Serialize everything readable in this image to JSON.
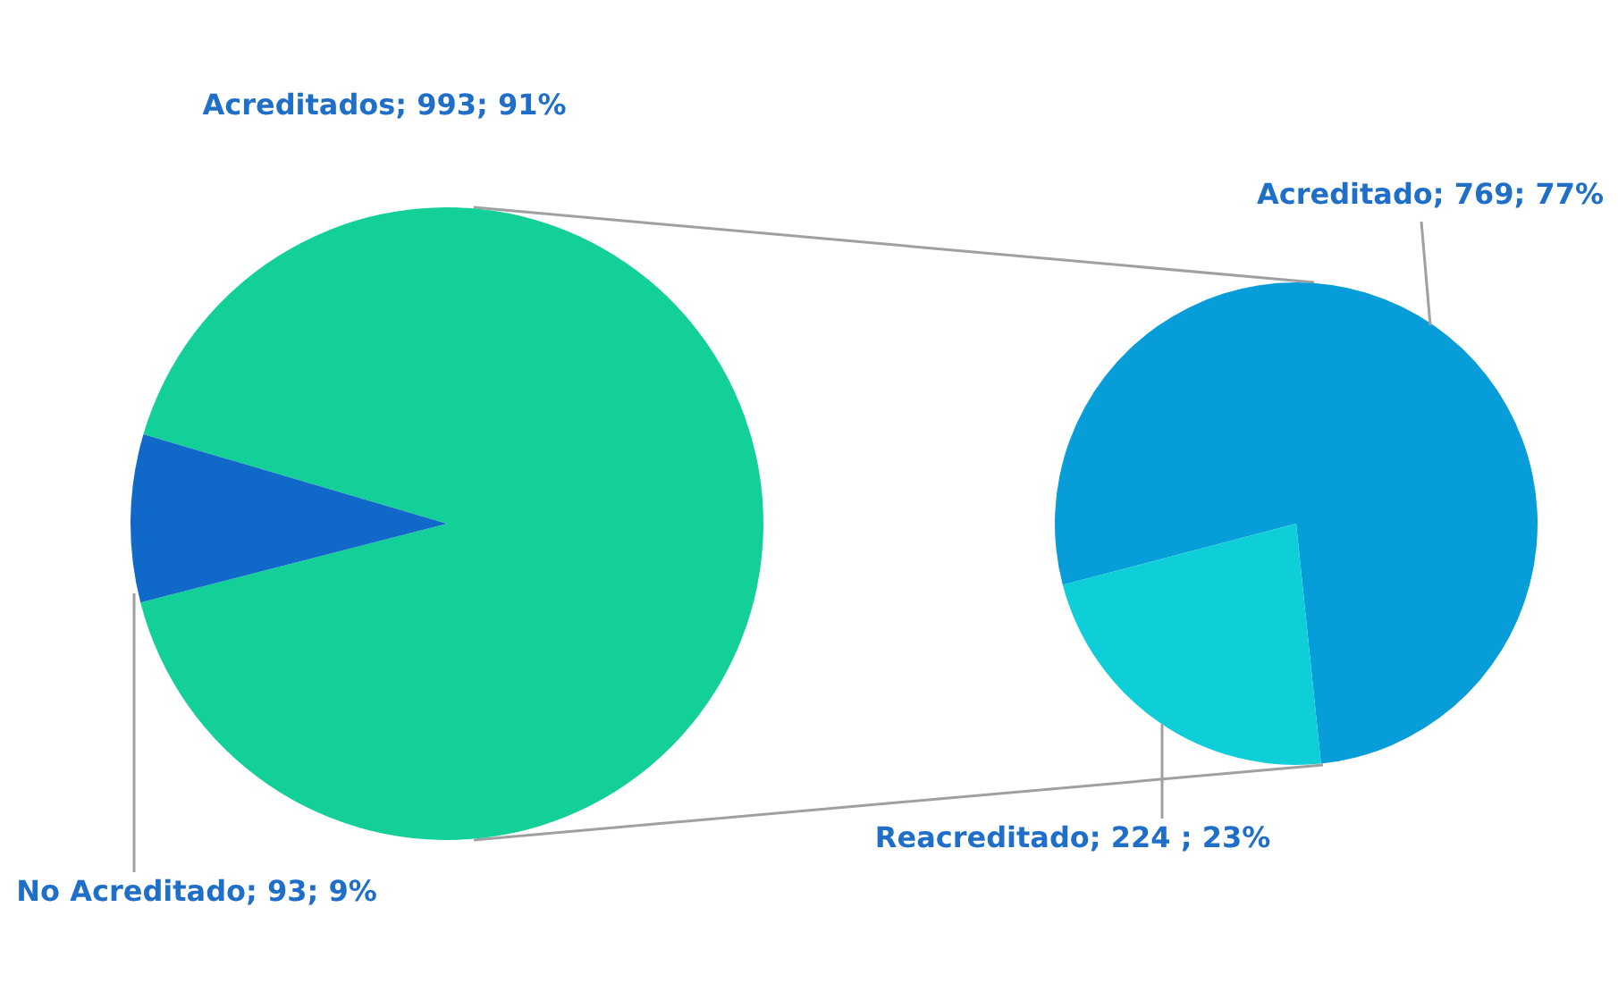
{
  "chart_data": [
    {
      "type": "pie",
      "categories": [
        "Acreditados",
        "No Acreditado"
      ],
      "values": [
        993,
        93
      ],
      "colors": [
        "#13cf98",
        "#1068c8"
      ],
      "value_labels": [
        "993; 91%",
        "93; 9%"
      ]
    },
    {
      "type": "pie",
      "categories": [
        "Acreditado",
        "Reacreditado"
      ],
      "values": [
        769,
        224
      ],
      "colors": [
        "#069dd9",
        "#0ecfd8"
      ],
      "value_labels": [
        "769; 77%",
        "224 ; 23%"
      ]
    }
  ]
}
